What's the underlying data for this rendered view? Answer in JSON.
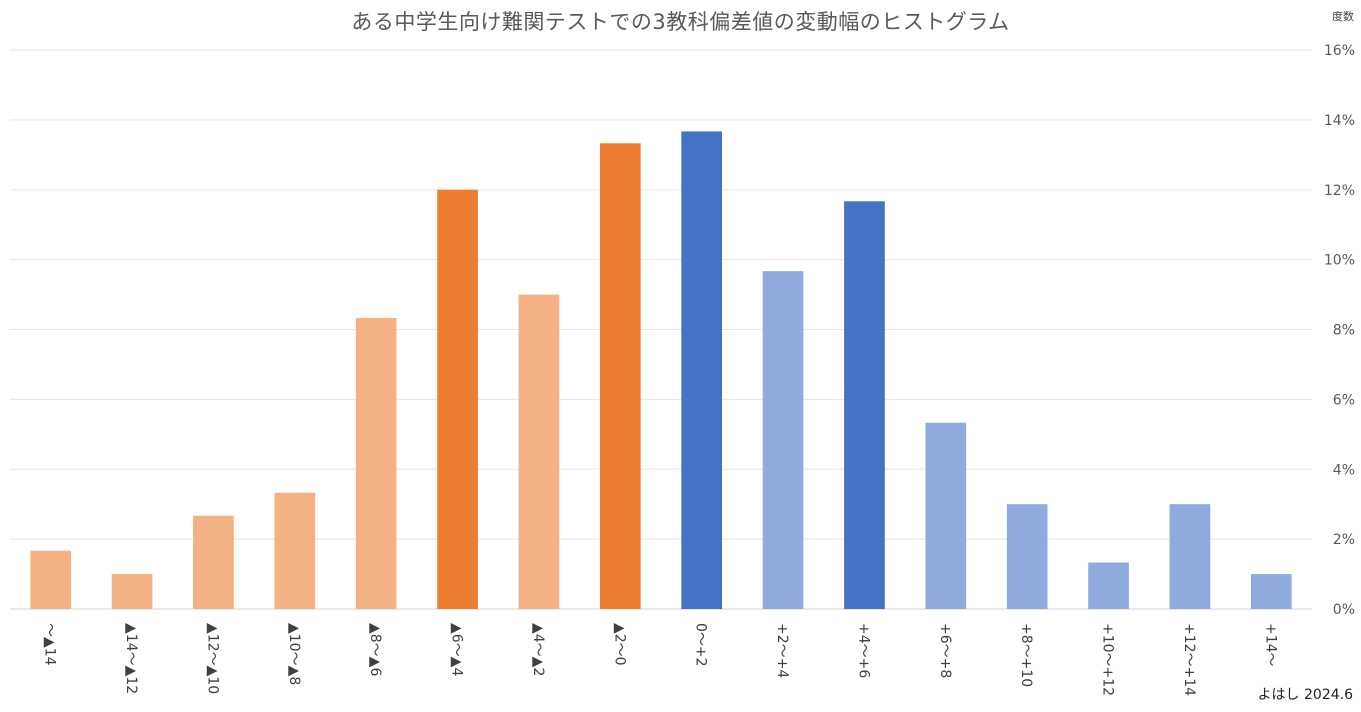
{
  "chart_data": {
    "type": "bar",
    "title": "ある中学生向け難関テストでの3教科偏差値の変動幅のヒストグラム",
    "ylabel": "度数",
    "ylim": [
      0,
      16
    ],
    "y_ticks": [
      "0%",
      "2%",
      "4%",
      "6%",
      "8%",
      "10%",
      "12%",
      "14%",
      "16%"
    ],
    "categories": [
      "〜▲14",
      "▲14〜▲12",
      "▲12〜▲10",
      "▲10〜▲8",
      "▲8〜▲6",
      "▲6〜▲4",
      "▲4〜▲2",
      "▲2〜0",
      "0〜+2",
      "+2〜+4",
      "+4〜+6",
      "+6〜+8",
      "+8〜+10",
      "+10〜+12",
      "+12〜+14",
      "+14〜"
    ],
    "values": [
      1.67,
      1.0,
      2.67,
      3.33,
      8.33,
      12.0,
      9.0,
      13.33,
      13.67,
      9.67,
      11.67,
      5.33,
      3.0,
      1.33,
      3.0,
      1.0
    ],
    "bar_colors": [
      "#F4B183",
      "#F4B183",
      "#F4B183",
      "#F4B183",
      "#F4B183",
      "#ED7D31",
      "#F4B183",
      "#ED7D31",
      "#4472C4",
      "#8FAADC",
      "#4472C4",
      "#8FAADC",
      "#8FAADC",
      "#8FAADC",
      "#8FAADC",
      "#8FAADC"
    ],
    "grid": true,
    "y_axis_side": "right",
    "credit": "よはし 2024.6"
  }
}
